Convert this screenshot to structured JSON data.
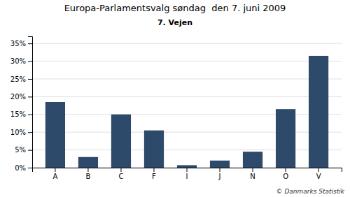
{
  "chart_data": {
    "type": "bar",
    "title": "Europa-Parlamentsvalg søndag  den 7. juni 2009",
    "subtitle": "7. Vejen",
    "annotations": [
      "© Danmarks Statistik"
    ],
    "categories": [
      "A",
      "B",
      "C",
      "F",
      "I",
      "J",
      "N",
      "O",
      "V"
    ],
    "values": [
      18.5,
      3.0,
      15.0,
      10.5,
      0.7,
      2.0,
      4.5,
      16.5,
      31.5
    ],
    "color": "#2e4a6b",
    "ylim": [
      0,
      37
    ],
    "yticks": [
      {
        "value": 0,
        "label": "0%"
      },
      {
        "value": 5,
        "label": "5%"
      },
      {
        "value": 10,
        "label": "10%"
      },
      {
        "value": 15,
        "label": "15%"
      },
      {
        "value": 20,
        "label": "20%"
      },
      {
        "value": 25,
        "label": "25%"
      },
      {
        "value": 30,
        "label": "30%"
      },
      {
        "value": 35,
        "label": "35%"
      }
    ],
    "grid": true
  }
}
